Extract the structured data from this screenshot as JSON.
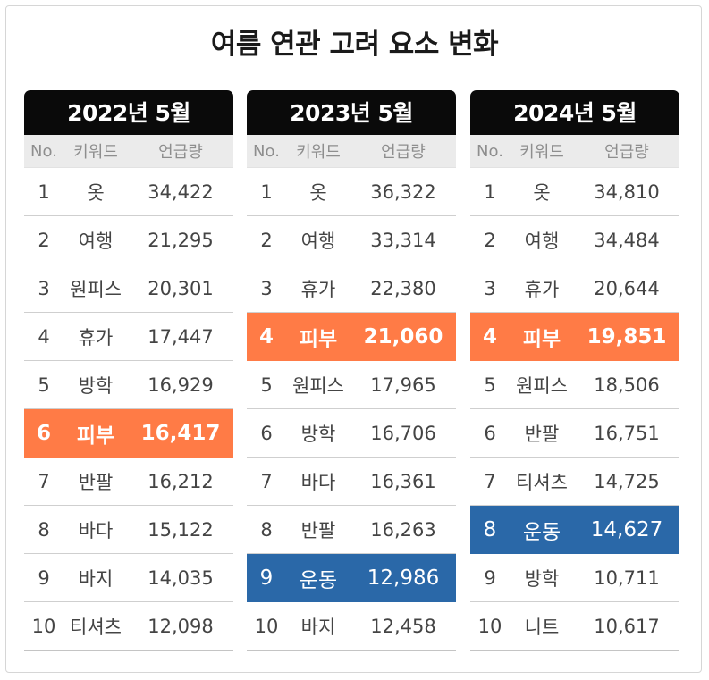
{
  "title": "여름 연관 고려 요소 변화",
  "columns": {
    "no": "No.",
    "keyword": "키워드",
    "count": "언급량"
  },
  "colors": {
    "orange": "#ff7b46",
    "blue": "#2a68a8",
    "header": "#0a0a0a"
  },
  "panels": [
    {
      "header": "2022년 5월",
      "rows": [
        {
          "no": "1",
          "keyword": "옷",
          "count": "34,422",
          "hl": ""
        },
        {
          "no": "2",
          "keyword": "여행",
          "count": "21,295",
          "hl": ""
        },
        {
          "no": "3",
          "keyword": "원피스",
          "count": "20,301",
          "hl": ""
        },
        {
          "no": "4",
          "keyword": "휴가",
          "count": "17,447",
          "hl": ""
        },
        {
          "no": "5",
          "keyword": "방학",
          "count": "16,929",
          "hl": ""
        },
        {
          "no": "6",
          "keyword": "피부",
          "count": "16,417",
          "hl": "orange"
        },
        {
          "no": "7",
          "keyword": "반팔",
          "count": "16,212",
          "hl": ""
        },
        {
          "no": "8",
          "keyword": "바다",
          "count": "15,122",
          "hl": ""
        },
        {
          "no": "9",
          "keyword": "바지",
          "count": "14,035",
          "hl": ""
        },
        {
          "no": "10",
          "keyword": "티셔츠",
          "count": "12,098",
          "hl": ""
        }
      ]
    },
    {
      "header": "2023년 5월",
      "rows": [
        {
          "no": "1",
          "keyword": "옷",
          "count": "36,322",
          "hl": ""
        },
        {
          "no": "2",
          "keyword": "여행",
          "count": "33,314",
          "hl": ""
        },
        {
          "no": "3",
          "keyword": "휴가",
          "count": "22,380",
          "hl": ""
        },
        {
          "no": "4",
          "keyword": "피부",
          "count": "21,060",
          "hl": "orange"
        },
        {
          "no": "5",
          "keyword": "원피스",
          "count": "17,965",
          "hl": ""
        },
        {
          "no": "6",
          "keyword": "방학",
          "count": "16,706",
          "hl": ""
        },
        {
          "no": "7",
          "keyword": "바다",
          "count": "16,361",
          "hl": ""
        },
        {
          "no": "8",
          "keyword": "반팔",
          "count": "16,263",
          "hl": ""
        },
        {
          "no": "9",
          "keyword": "운동",
          "count": "12,986",
          "hl": "blue"
        },
        {
          "no": "10",
          "keyword": "바지",
          "count": "12,458",
          "hl": ""
        }
      ]
    },
    {
      "header": "2024년 5월",
      "rows": [
        {
          "no": "1",
          "keyword": "옷",
          "count": "34,810",
          "hl": ""
        },
        {
          "no": "2",
          "keyword": "여행",
          "count": "34,484",
          "hl": ""
        },
        {
          "no": "3",
          "keyword": "휴가",
          "count": "20,644",
          "hl": ""
        },
        {
          "no": "4",
          "keyword": "피부",
          "count": "19,851",
          "hl": "orange"
        },
        {
          "no": "5",
          "keyword": "원피스",
          "count": "18,506",
          "hl": ""
        },
        {
          "no": "6",
          "keyword": "반팔",
          "count": "16,751",
          "hl": ""
        },
        {
          "no": "7",
          "keyword": "티셔츠",
          "count": "14,725",
          "hl": ""
        },
        {
          "no": "8",
          "keyword": "운동",
          "count": "14,627",
          "hl": "blue"
        },
        {
          "no": "9",
          "keyword": "방학",
          "count": "10,711",
          "hl": ""
        },
        {
          "no": "10",
          "keyword": "니트",
          "count": "10,617",
          "hl": ""
        }
      ]
    }
  ]
}
